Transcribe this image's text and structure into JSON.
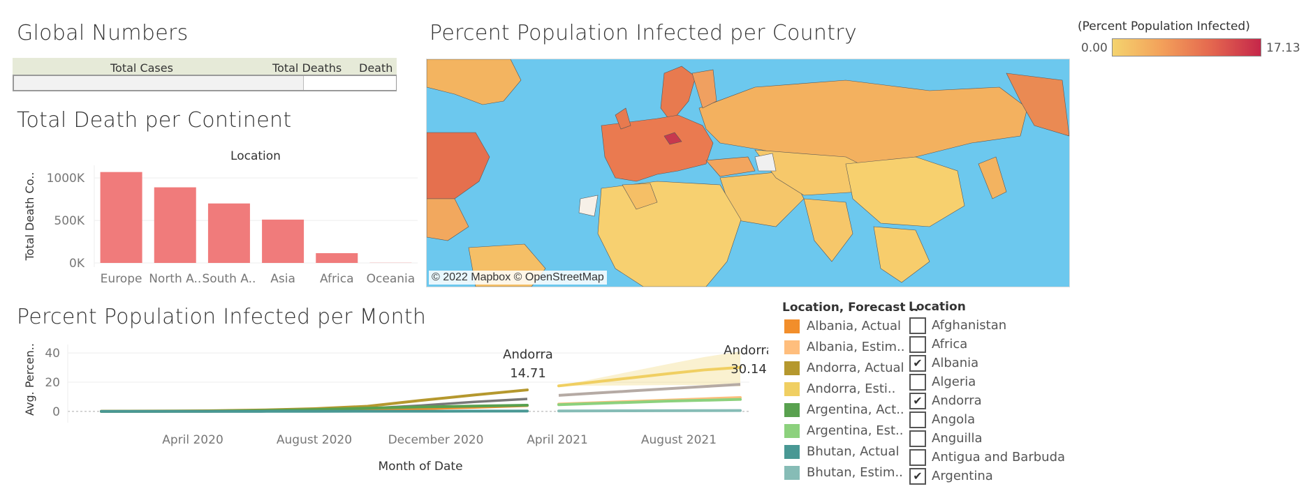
{
  "global_numbers": {
    "title": "Global Numbers",
    "columns": [
      "Total Cases",
      "Total Deaths",
      "Death"
    ]
  },
  "continent_chart": {
    "title": "Total Death per Continent",
    "chart_data": {
      "type": "bar",
      "title": "Location",
      "ylabel": "Total Death Co..",
      "categories": [
        "Europe",
        "North A..",
        "South A..",
        "Asia",
        "Africa",
        "Oceania"
      ],
      "values": [
        1070000,
        890000,
        700000,
        510000,
        115000,
        2000
      ],
      "yticks": [
        "1000K",
        "500K",
        "0K"
      ],
      "ylim": [
        0,
        1100000
      ],
      "color": "#f07b7b"
    }
  },
  "map": {
    "title": "Percent Population Infected per Country",
    "attribution": "© 2022 Mapbox © OpenStreetMap",
    "legend_title": "(Percent Population Infected)",
    "legend_min": "0.00",
    "legend_max": "17.13",
    "ocean_color": "#6cc8ee"
  },
  "month_chart": {
    "title": "Percent Population Infected per Month",
    "chart_data": {
      "type": "line",
      "xlabel": "Month of Date",
      "ylabel": "Avg. Percen..",
      "yticks": [
        "40",
        "20",
        "0"
      ],
      "ylim": [
        -2,
        42
      ],
      "xticks": [
        "April 2020",
        "August 2020",
        "December 2020",
        "April 2021",
        "August 2021"
      ],
      "annotations": [
        {
          "label": "Andorra",
          "value": "14.71"
        },
        {
          "label": "Andorra",
          "value": "30.14"
        }
      ],
      "series": [
        {
          "name": "Andorra, Actual",
          "color": "#b5982e",
          "values": [
            0.1,
            0.2,
            0.4,
            0.9,
            1.8,
            3.5,
            7.5,
            11.2,
            14.71
          ]
        },
        {
          "name": "Andorra, Estim..",
          "color": "#f0cf62",
          "values": [
            17.5,
            20.2,
            23.0,
            25.8,
            28.4,
            30.14
          ]
        },
        {
          "name": "Albania, Actual",
          "color": "#f28e2b",
          "values": [
            0.0,
            0.05,
            0.1,
            0.2,
            0.5,
            1.0,
            1.8,
            2.8,
            4.0
          ]
        },
        {
          "name": "Albania, Estim..",
          "color": "#ffbe7d",
          "values": [
            5.0,
            5.9,
            6.8,
            7.7,
            8.6,
            9.5
          ]
        },
        {
          "name": "Argentina, Act..",
          "color": "#59a14f",
          "values": [
            0.0,
            0.05,
            0.1,
            0.5,
            1.2,
            2.2,
            3.0,
            3.6,
            4.2
          ]
        },
        {
          "name": "Argentina, Est..",
          "color": "#8cd17d",
          "values": [
            4.6,
            5.4,
            6.2,
            7.0,
            7.6,
            8.2
          ]
        },
        {
          "name": "Bhutan, Actual",
          "color": "#499894",
          "values": [
            0.0,
            0.0,
            0.0,
            0.0,
            0.05,
            0.1,
            0.1,
            0.15,
            0.2
          ]
        },
        {
          "name": "Bhutan, Estim..",
          "color": "#86bcb6",
          "values": [
            0.3,
            0.35,
            0.4,
            0.45,
            0.5,
            0.55
          ]
        }
      ]
    },
    "legend_title": "Location, Forecast ..",
    "legend": [
      {
        "label": "Albania, Actual",
        "color": "#f28e2b"
      },
      {
        "label": "Albania, Estim..",
        "color": "#ffbe7d"
      },
      {
        "label": "Andorra, Actual",
        "color": "#b5982e"
      },
      {
        "label": "Andorra, Esti..",
        "color": "#f0cf62"
      },
      {
        "label": "Argentina, Act..",
        "color": "#59a14f"
      },
      {
        "label": "Argentina, Est..",
        "color": "#8cd17d"
      },
      {
        "label": "Bhutan, Actual",
        "color": "#499894"
      },
      {
        "label": "Bhutan, Estim..",
        "color": "#86bcb6"
      }
    ]
  },
  "location_filter": {
    "title": "Location",
    "items": [
      {
        "label": "Afghanistan",
        "checked": false
      },
      {
        "label": "Africa",
        "checked": false
      },
      {
        "label": "Albania",
        "checked": true
      },
      {
        "label": "Algeria",
        "checked": false
      },
      {
        "label": "Andorra",
        "checked": true
      },
      {
        "label": "Angola",
        "checked": false
      },
      {
        "label": "Anguilla",
        "checked": false
      },
      {
        "label": "Antigua and Barbuda",
        "checked": false
      },
      {
        "label": "Argentina",
        "checked": true
      }
    ]
  }
}
